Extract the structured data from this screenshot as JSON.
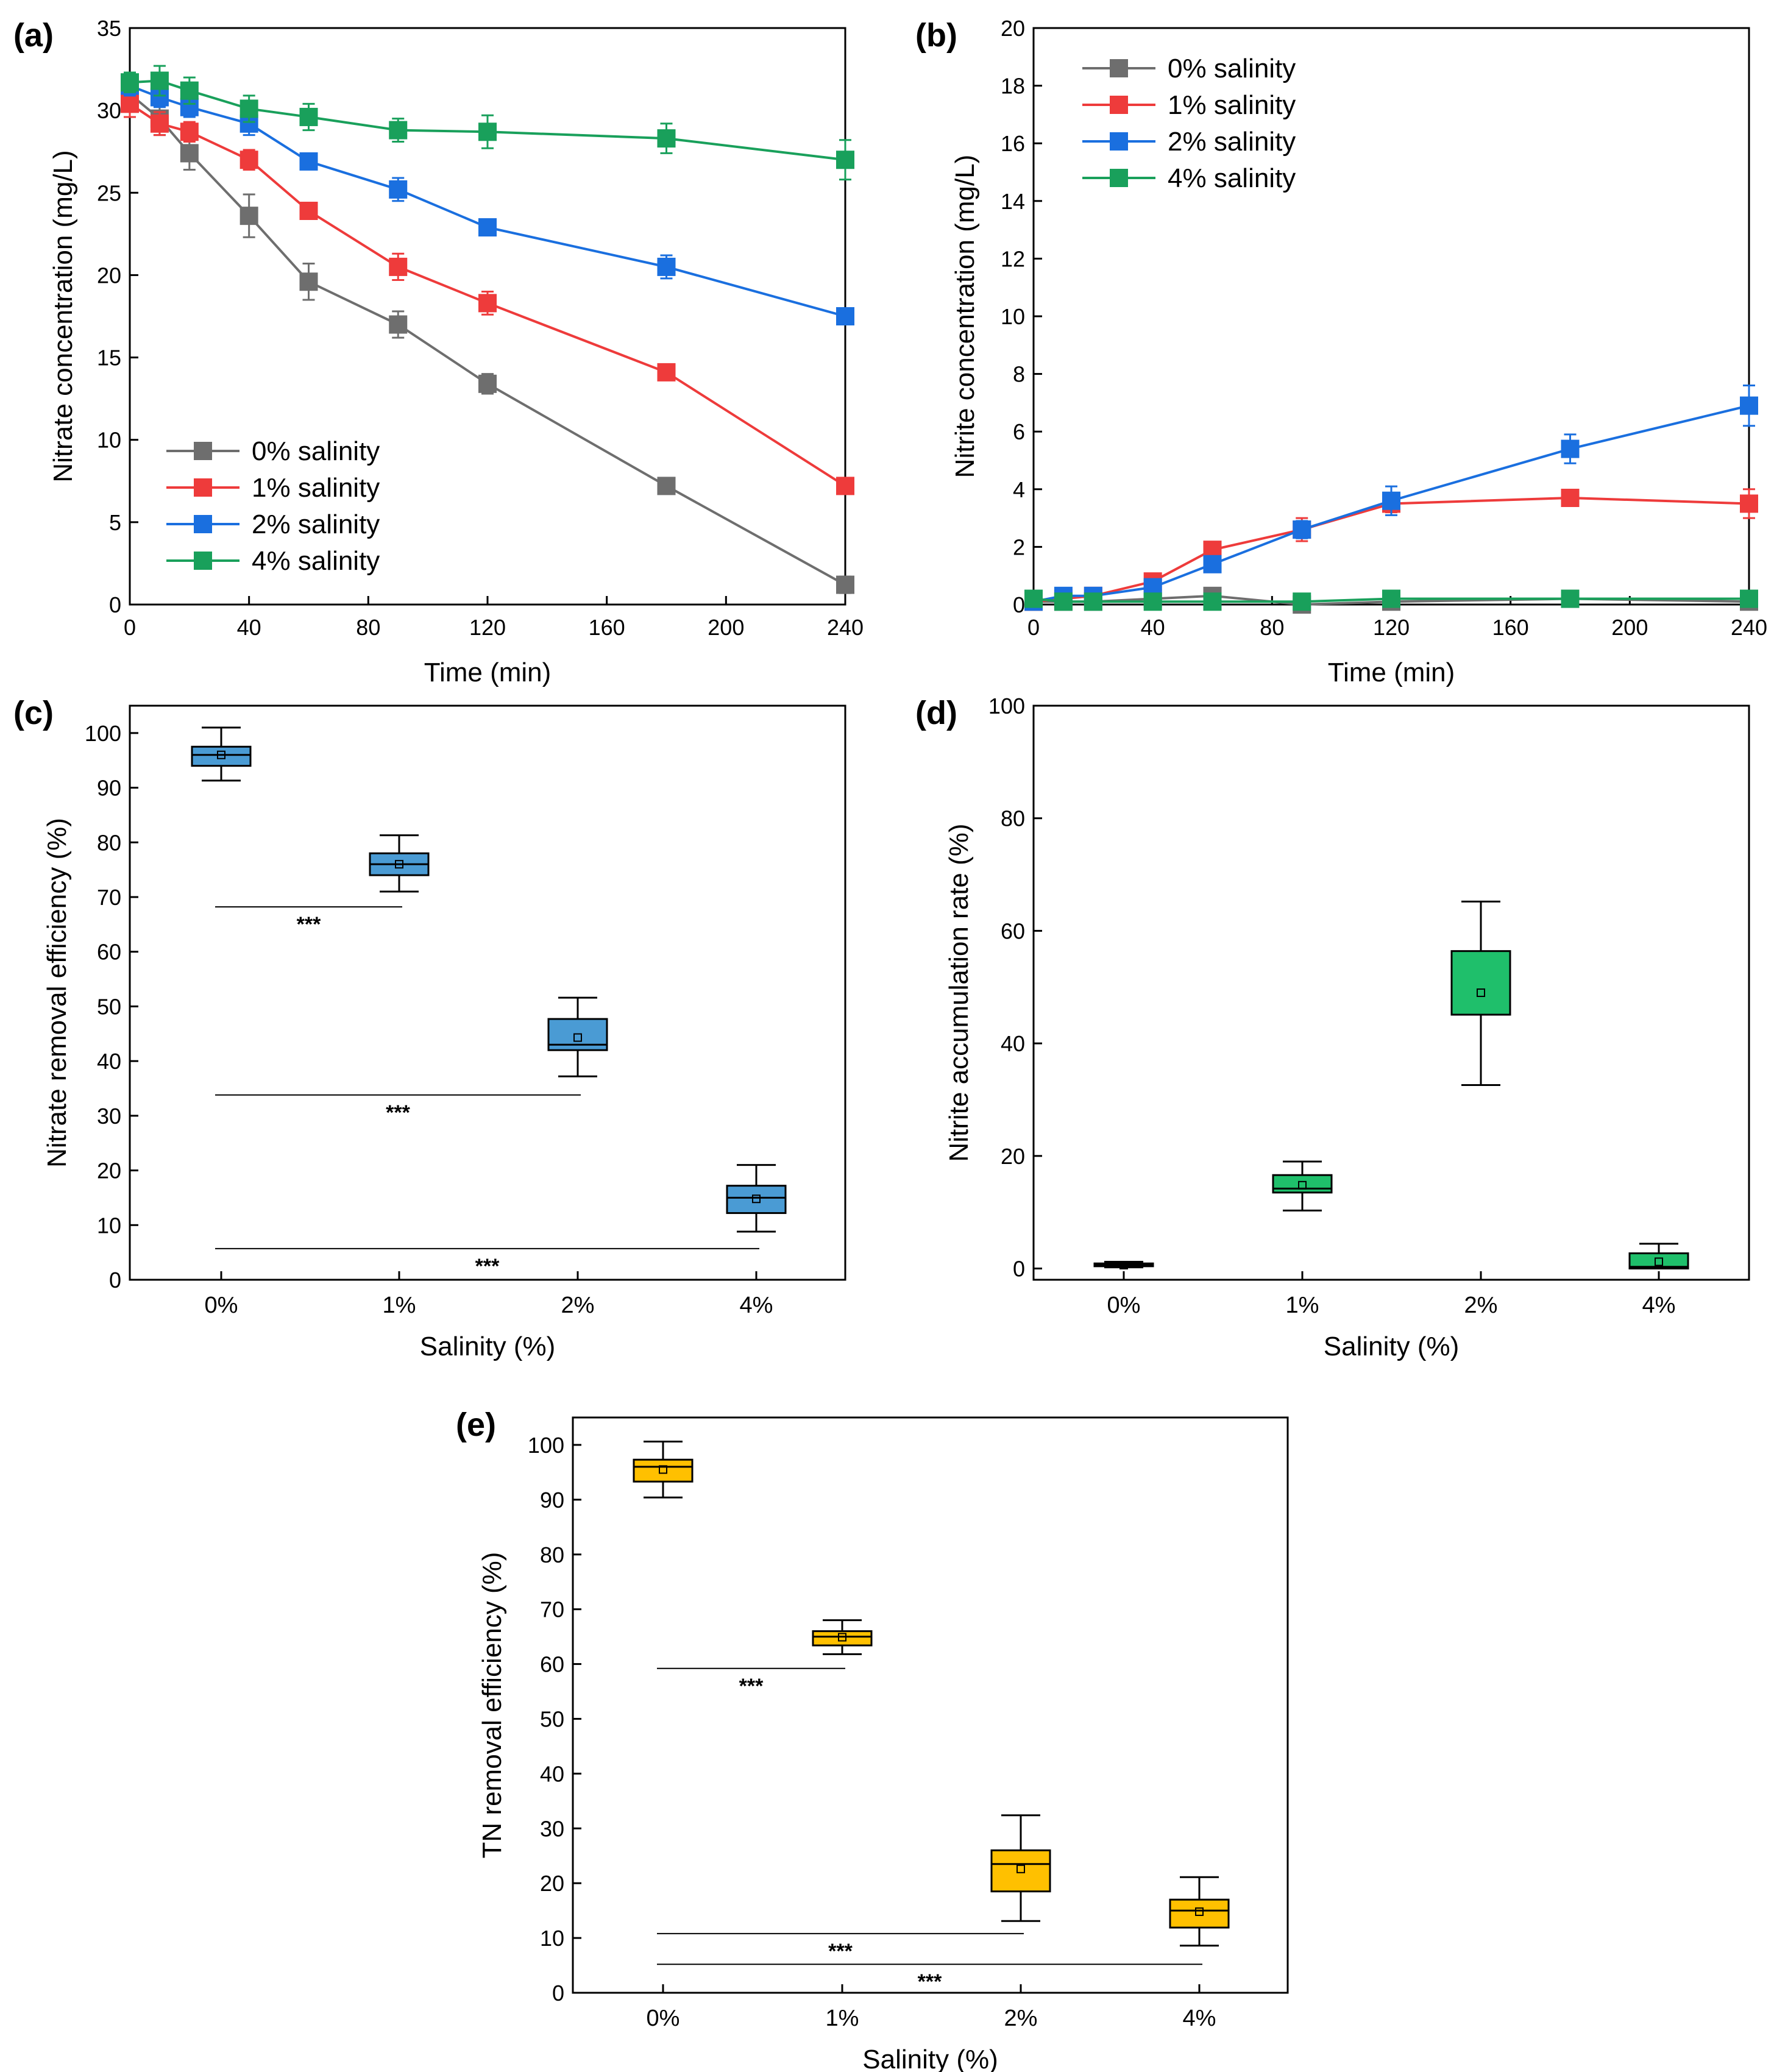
{
  "chart_data": [
    {
      "id": "a",
      "panel_label": "(a)",
      "type": "line",
      "xlabel": "Time (min)",
      "ylabel": "Nitrate concentration (mg/L)",
      "xlim": [
        0,
        240
      ],
      "ylim": [
        0,
        35
      ],
      "xticks": [
        0,
        40,
        80,
        120,
        160,
        200,
        240
      ],
      "yticks": [
        0,
        5,
        10,
        15,
        20,
        25,
        30,
        35
      ],
      "legend_position": "bottom-left",
      "x": [
        0,
        10,
        20,
        40,
        60,
        90,
        120,
        180,
        240
      ],
      "series": [
        {
          "name": "0% salinity",
          "color": "#6e6e6e",
          "values": [
            31.0,
            29.5,
            27.4,
            23.6,
            19.6,
            17.0,
            13.4,
            7.2,
            1.2
          ],
          "errors": [
            1.0,
            1.0,
            1.0,
            1.3,
            1.1,
            0.8,
            0.6,
            0.3,
            0.5
          ]
        },
        {
          "name": "1% salinity",
          "color": "#ee3b3b",
          "values": [
            30.4,
            29.2,
            28.7,
            27.0,
            23.9,
            20.5,
            18.3,
            14.1,
            7.2
          ],
          "errors": [
            0.8,
            0.7,
            0.6,
            0.6,
            0.3,
            0.8,
            0.7,
            0.3,
            0.2
          ]
        },
        {
          "name": "2% salinity",
          "color": "#1a6fdf",
          "values": [
            31.5,
            30.8,
            30.2,
            29.2,
            26.9,
            25.2,
            22.9,
            20.5,
            17.5
          ],
          "errors": [
            0.6,
            0.6,
            0.6,
            0.7,
            0.3,
            0.7,
            0.3,
            0.7,
            0.5
          ]
        },
        {
          "name": "4% salinity",
          "color": "#19a05b",
          "values": [
            31.7,
            31.8,
            31.2,
            30.1,
            29.6,
            28.8,
            28.7,
            28.3,
            27.0
          ],
          "errors": [
            0.6,
            0.9,
            0.8,
            0.8,
            0.8,
            0.7,
            1.0,
            0.9,
            1.2
          ]
        }
      ]
    },
    {
      "id": "b",
      "panel_label": "(b)",
      "type": "line",
      "xlabel": "Time (min)",
      "ylabel": "Nitrite concentration (mg/L)",
      "xlim": [
        0,
        240
      ],
      "ylim": [
        0,
        20
      ],
      "xticks": [
        0,
        40,
        80,
        120,
        160,
        200,
        240
      ],
      "yticks": [
        0,
        2,
        4,
        6,
        8,
        10,
        12,
        14,
        16,
        18,
        20
      ],
      "legend_position": "top-left",
      "x": [
        0,
        10,
        20,
        40,
        60,
        90,
        120,
        180,
        240
      ],
      "series": [
        {
          "name": "0% salinity",
          "color": "#6e6e6e",
          "values": [
            0.1,
            0.1,
            0.1,
            0.2,
            0.3,
            0.0,
            0.1,
            0.2,
            0.1
          ],
          "errors": [
            0.05,
            0.05,
            0.05,
            0.05,
            0.05,
            0.05,
            0.05,
            0.05,
            0.05
          ]
        },
        {
          "name": "1% salinity",
          "color": "#ee3b3b",
          "values": [
            0.1,
            0.2,
            0.3,
            0.8,
            1.9,
            2.6,
            3.5,
            3.7,
            3.5
          ],
          "errors": [
            0.05,
            0.05,
            0.05,
            0.1,
            0.2,
            0.4,
            0.3,
            0.2,
            0.5
          ]
        },
        {
          "name": "2% salinity",
          "color": "#1a6fdf",
          "values": [
            0.1,
            0.3,
            0.3,
            0.6,
            1.4,
            2.6,
            3.6,
            5.4,
            6.9
          ],
          "errors": [
            0.05,
            0.05,
            0.05,
            0.1,
            0.2,
            0.3,
            0.5,
            0.5,
            0.7
          ]
        },
        {
          "name": "4% salinity",
          "color": "#19a05b",
          "values": [
            0.2,
            0.1,
            0.1,
            0.1,
            0.1,
            0.1,
            0.2,
            0.2,
            0.2
          ],
          "errors": [
            0.05,
            0.05,
            0.05,
            0.05,
            0.05,
            0.05,
            0.05,
            0.05,
            0.05
          ]
        }
      ]
    },
    {
      "id": "c",
      "panel_label": "(c)",
      "type": "box",
      "xlabel": "Salinity (%)",
      "ylabel": "Nitrate removal efficiency (%)",
      "ylim": [
        0,
        105
      ],
      "yticks": [
        0,
        10,
        20,
        30,
        40,
        50,
        60,
        70,
        80,
        90,
        100
      ],
      "categories": [
        "0%",
        "1%",
        "2%",
        "4%"
      ],
      "box_color": "#4a9bd4",
      "boxes": [
        {
          "category": "0%",
          "min": 91.3,
          "q1": 94.0,
          "median": 96.0,
          "q3": 97.5,
          "max": 101.0,
          "mean": 96.0
        },
        {
          "category": "1%",
          "min": 71.0,
          "q1": 74.0,
          "median": 76.0,
          "q3": 78.0,
          "max": 81.3,
          "mean": 76.0
        },
        {
          "category": "2%",
          "min": 37.2,
          "q1": 42.0,
          "median": 43.0,
          "q3": 47.7,
          "max": 51.6,
          "mean": 44.3
        },
        {
          "category": "4%",
          "min": 8.8,
          "q1": 12.2,
          "median": 15.0,
          "q3": 17.2,
          "max": 21.0,
          "mean": 14.8
        }
      ],
      "significance": [
        {
          "from": "0%",
          "to": "1%",
          "y": 68.2,
          "label": "***"
        },
        {
          "from": "0%",
          "to": "2%",
          "y": 33.8,
          "label": "***"
        },
        {
          "from": "0%",
          "to": "4%",
          "y": 5.7,
          "label": "***"
        }
      ]
    },
    {
      "id": "d",
      "panel_label": "(d)",
      "type": "box",
      "xlabel": "Salinity (%)",
      "ylabel": "Nitrite accumulation rate (%)",
      "ylim": [
        -2,
        100
      ],
      "yticks": [
        0,
        20,
        40,
        60,
        80,
        100
      ],
      "categories": [
        "0%",
        "1%",
        "2%",
        "4%"
      ],
      "box_color": "#1fbf6b",
      "boxes": [
        {
          "category": "0%",
          "min": 0.2,
          "q1": 0.4,
          "median": 0.6,
          "q3": 0.9,
          "max": 1.2,
          "mean": 0.6
        },
        {
          "category": "1%",
          "min": 10.3,
          "q1": 13.5,
          "median": 14.2,
          "q3": 16.6,
          "max": 19.0,
          "mean": 14.8
        },
        {
          "category": "2%",
          "min": 32.6,
          "q1": 45.1,
          "median": 45.1,
          "q3": 56.4,
          "max": 65.2,
          "mean": 49.0
        },
        {
          "category": "4%",
          "min": 0.0,
          "q1": 0.0,
          "median": 0.3,
          "q3": 2.7,
          "max": 4.4,
          "mean": 1.2
        }
      ],
      "significance": []
    },
    {
      "id": "e",
      "panel_label": "(e)",
      "type": "box",
      "xlabel": "Salinity (%)",
      "ylabel": "TN removal efficiency (%)",
      "ylim": [
        0,
        105
      ],
      "yticks": [
        0,
        10,
        20,
        30,
        40,
        50,
        60,
        70,
        80,
        90,
        100
      ],
      "categories": [
        "0%",
        "1%",
        "2%",
        "4%"
      ],
      "box_color": "#ffc000",
      "boxes": [
        {
          "category": "0%",
          "min": 90.4,
          "q1": 93.3,
          "median": 96.0,
          "q3": 97.3,
          "max": 100.6,
          "mean": 95.5
        },
        {
          "category": "1%",
          "min": 61.8,
          "q1": 63.4,
          "median": 65.0,
          "q3": 66.0,
          "max": 68.0,
          "mean": 64.9
        },
        {
          "category": "2%",
          "min": 13.1,
          "q1": 18.5,
          "median": 23.5,
          "q3": 26.0,
          "max": 32.4,
          "mean": 22.6
        },
        {
          "category": "4%",
          "min": 8.6,
          "q1": 11.9,
          "median": 15.0,
          "q3": 17.0,
          "max": 21.1,
          "mean": 14.8
        }
      ],
      "significance": [
        {
          "from": "0%",
          "to": "1%",
          "y": 59.2,
          "label": "***"
        },
        {
          "from": "0%",
          "to": "2%",
          "y": 10.8,
          "label": "***"
        },
        {
          "from": "0%",
          "to": "4%",
          "y": 5.2,
          "label": "***"
        }
      ]
    }
  ]
}
